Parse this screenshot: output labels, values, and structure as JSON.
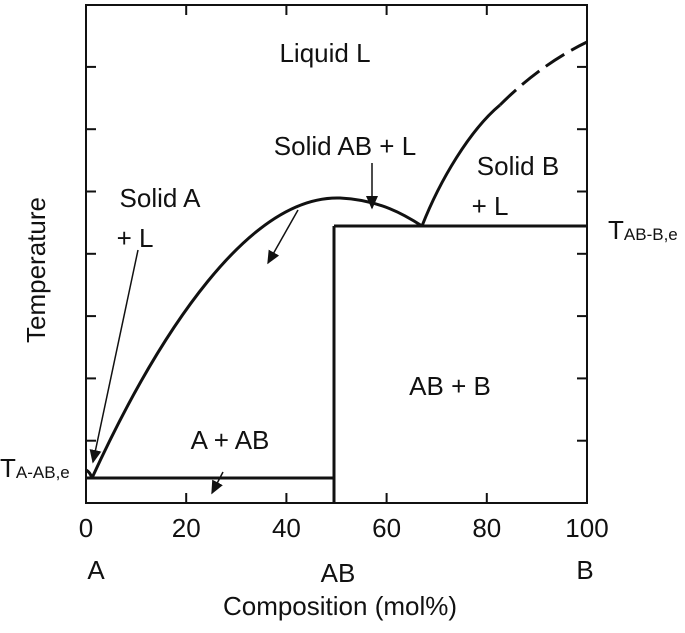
{
  "regions": {
    "liquid": "Liquid L",
    "solid_a_l": [
      "Solid A",
      "+ L"
    ],
    "solid_ab_l": "Solid AB + L",
    "solid_b_l": [
      "Solid B",
      "+ L"
    ],
    "ab_b": "AB + B",
    "a_ab": "A + AB"
  },
  "eutectics": {
    "ab_b": {
      "main": "T",
      "sub": "AB-B,e"
    },
    "a_ab": {
      "main": "T",
      "sub": "A-AB,e"
    }
  },
  "y_axis": {
    "label": "Temperature"
  },
  "x_axis": {
    "label": "Composition (mol%)",
    "ticks": [
      0,
      20,
      40,
      60,
      80,
      100
    ],
    "components": [
      "A",
      "AB",
      "B"
    ]
  }
}
